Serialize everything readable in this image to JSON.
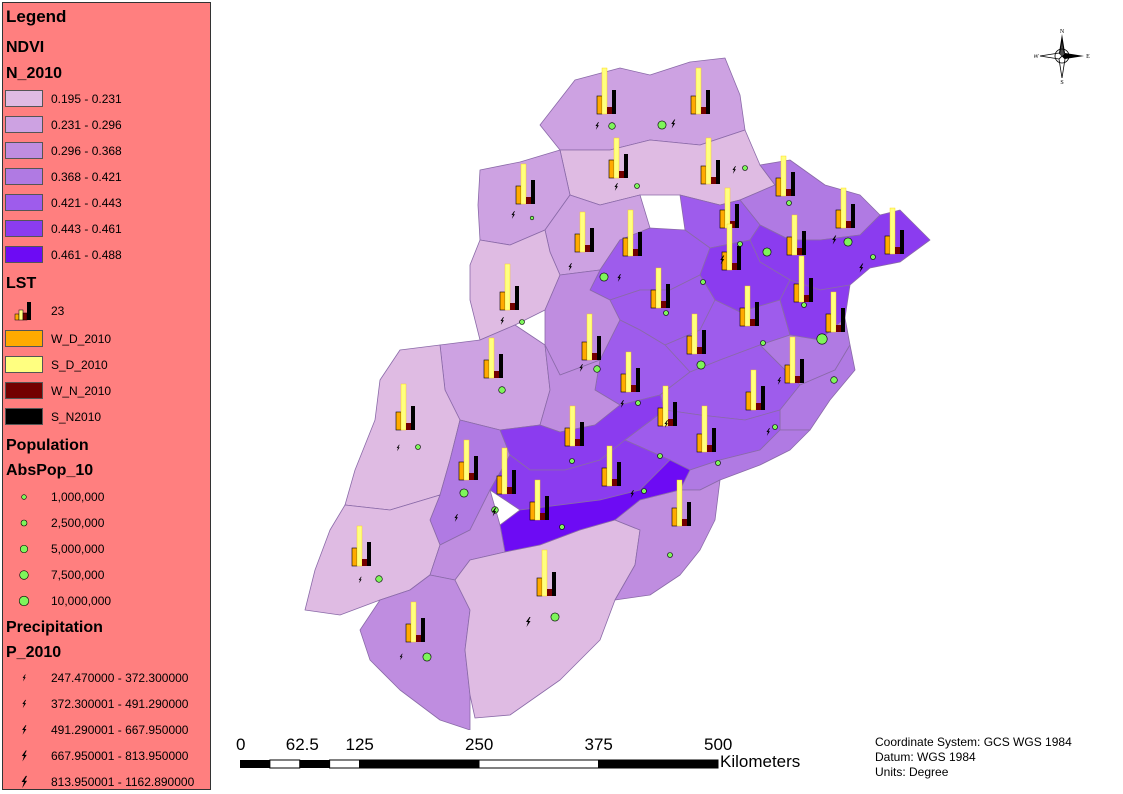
{
  "legend": {
    "title": "Legend",
    "ndvi": {
      "heading": "NDVI",
      "field": "N_2010",
      "classes": [
        {
          "label": "0.195 - 0.231",
          "color": "#dfbbe3"
        },
        {
          "label": "0.231 - 0.296",
          "color": "#cda2e2"
        },
        {
          "label": "0.296 - 0.368",
          "color": "#bf8de0"
        },
        {
          "label": "0.368 - 0.421",
          "color": "#b07ae3"
        },
        {
          "label": "0.421 - 0.443",
          "color": "#9e5cec"
        },
        {
          "label": "0.443 - 0.461",
          "color": "#8b3cef"
        },
        {
          "label": "0.461 - 0.488",
          "color": "#6d0bf4"
        }
      ]
    },
    "lst": {
      "heading": "LST",
      "size_label": "23",
      "series": [
        {
          "label": "W_D_2010",
          "color": "#ffaa00"
        },
        {
          "label": "S_D_2010",
          "color": "#ffff80"
        },
        {
          "label": "W_N_2010",
          "color": "#730000"
        },
        {
          "label": "S_N2010",
          "color": "#000000"
        }
      ]
    },
    "population": {
      "heading": "Population",
      "field": "AbsPop_10",
      "color": "#7ef55b",
      "classes": [
        {
          "label": "1,000,000",
          "value": 1000000
        },
        {
          "label": "2,500,000",
          "value": 2500000
        },
        {
          "label": "5,000,000",
          "value": 5000000
        },
        {
          "label": "7,500,000",
          "value": 7500000
        },
        {
          "label": "10,000,000",
          "value": 10000000
        }
      ]
    },
    "precipitation": {
      "heading": "Precipitation",
      "field": "P_2010",
      "classes": [
        {
          "label": "247.470000 - 372.300000"
        },
        {
          "label": "372.300001 - 491.290000"
        },
        {
          "label": "491.290001 - 667.950000"
        },
        {
          "label": "667.950001 - 813.950000"
        },
        {
          "label": "813.950001 - 1162.890000"
        }
      ]
    }
  },
  "scalebar": {
    "ticks": [
      "0",
      "62.5",
      "125",
      "250",
      "375",
      "500"
    ],
    "values_km": [
      0,
      62.5,
      125,
      250,
      375,
      500
    ],
    "unit": "Kilometers"
  },
  "coord_info": {
    "system": "Coordinate System: GCS WGS 1984",
    "datum": "Datum: WGS 1984",
    "units": "Units: Degree"
  },
  "north_arrow": {
    "n": "N",
    "s": "S",
    "e": "E",
    "w": "W"
  }
}
